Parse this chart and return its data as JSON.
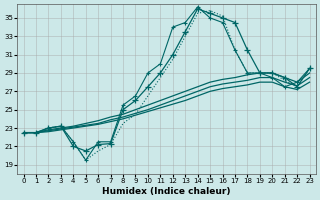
{
  "title": "",
  "xlabel": "Humidex (Indice chaleur)",
  "ylabel": "",
  "bg_color": "#cce8e8",
  "grid_color": "#aaaaaa",
  "line_color": "#006666",
  "xlim": [
    -0.5,
    23.5
  ],
  "ylim": [
    18,
    36.5
  ],
  "xticks": [
    0,
    1,
    2,
    3,
    4,
    5,
    6,
    7,
    8,
    9,
    10,
    11,
    12,
    13,
    14,
    15,
    16,
    17,
    18,
    19,
    20,
    21,
    22,
    23
  ],
  "yticks": [
    19,
    21,
    23,
    25,
    27,
    29,
    31,
    33,
    35
  ],
  "series1_x": [
    0,
    1,
    2,
    3,
    4,
    5,
    6,
    7,
    8,
    9,
    10,
    11,
    12,
    13,
    14,
    15,
    16,
    17,
    18,
    19,
    20,
    21,
    22,
    23
  ],
  "series1_y": [
    22.5,
    22.5,
    23.0,
    23.2,
    21.0,
    20.5,
    21.2,
    21.3,
    25.0,
    26.0,
    27.5,
    29.0,
    31.0,
    33.5,
    36.0,
    35.5,
    35.0,
    34.5,
    31.5,
    29.0,
    29.0,
    28.5,
    27.5,
    29.5
  ],
  "series2_x": [
    0,
    1,
    2,
    3,
    4,
    5,
    6,
    7,
    8,
    9,
    10,
    11,
    12,
    13,
    14,
    15,
    16,
    17,
    18,
    19,
    20,
    21,
    22,
    23
  ],
  "series2_y": [
    22.5,
    22.5,
    23.0,
    23.2,
    21.5,
    19.5,
    21.5,
    21.5,
    25.5,
    26.5,
    29.0,
    30.0,
    34.0,
    34.5,
    36.2,
    35.0,
    34.5,
    31.5,
    29.0,
    29.0,
    28.5,
    27.5,
    28.0,
    29.5
  ],
  "series3_x": [
    0,
    1,
    2,
    3,
    4,
    5,
    6,
    7,
    8,
    9,
    10,
    11,
    12,
    13,
    14,
    15,
    16,
    17,
    18,
    19,
    20,
    21,
    22,
    23
  ],
  "series3_y": [
    22.5,
    22.5,
    23.0,
    23.2,
    21.5,
    19.5,
    20.5,
    21.2,
    23.5,
    24.5,
    26.5,
    28.5,
    30.5,
    33.0,
    35.5,
    35.8,
    35.2,
    31.5,
    29.0,
    29.0,
    29.0,
    28.2,
    27.5,
    29.5
  ],
  "series4_x": [
    0,
    1,
    2,
    3,
    4,
    5,
    6,
    7,
    8,
    9,
    10,
    11,
    12,
    13,
    14,
    15,
    16,
    17,
    18,
    19,
    20,
    21,
    22,
    23
  ],
  "series4_y": [
    22.5,
    22.5,
    22.8,
    23.0,
    23.2,
    23.5,
    23.8,
    24.2,
    24.5,
    25.0,
    25.5,
    26.0,
    26.5,
    27.0,
    27.5,
    28.0,
    28.3,
    28.5,
    28.8,
    29.0,
    29.0,
    28.5,
    28.0,
    29.0
  ],
  "series5_x": [
    0,
    1,
    2,
    3,
    4,
    5,
    6,
    7,
    8,
    9,
    10,
    11,
    12,
    13,
    14,
    15,
    16,
    17,
    18,
    19,
    20,
    21,
    22,
    23
  ],
  "series5_y": [
    22.5,
    22.5,
    22.7,
    22.9,
    23.1,
    23.3,
    23.5,
    23.9,
    24.2,
    24.6,
    25.0,
    25.5,
    26.0,
    26.5,
    27.0,
    27.5,
    27.8,
    28.0,
    28.2,
    28.5,
    28.5,
    28.0,
    27.6,
    28.5
  ],
  "series6_x": [
    0,
    1,
    2,
    3,
    4,
    5,
    6,
    7,
    8,
    9,
    10,
    11,
    12,
    13,
    14,
    15,
    16,
    17,
    18,
    19,
    20,
    21,
    22,
    23
  ],
  "series6_y": [
    22.5,
    22.5,
    22.6,
    22.8,
    23.0,
    23.2,
    23.4,
    23.7,
    24.0,
    24.4,
    24.8,
    25.2,
    25.6,
    26.0,
    26.5,
    27.0,
    27.3,
    27.5,
    27.7,
    28.0,
    28.0,
    27.5,
    27.2,
    28.0
  ]
}
